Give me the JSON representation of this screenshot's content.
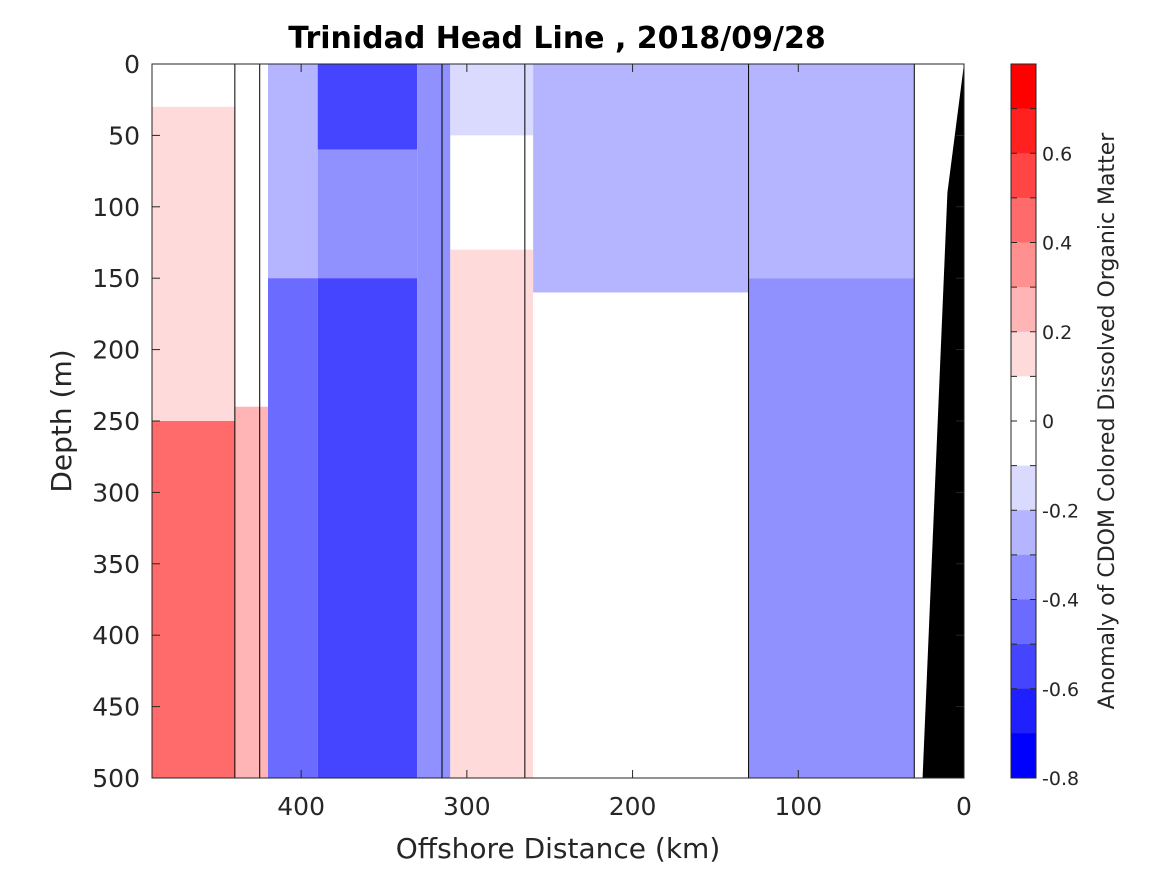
{
  "chart_data": {
    "type": "heatmap",
    "title": "Trinidad Head Line , 2018/09/28",
    "xlabel": "Offshore Distance (km)",
    "ylabel": "Depth (m)",
    "colorbar_label": "Anomaly of CDOM Colored Dissolved Organic Matter",
    "xlim": [
      490,
      0
    ],
    "ylim": [
      0,
      500
    ],
    "x_reversed": true,
    "y_reversed": true,
    "x_ticks": [
      400,
      300,
      200,
      100,
      0
    ],
    "x_tick_labels": [
      "400",
      "300",
      "200",
      "100",
      "0"
    ],
    "y_ticks": [
      0,
      50,
      100,
      150,
      200,
      250,
      300,
      350,
      400,
      450,
      500
    ],
    "y_tick_labels": [
      "0",
      "50",
      "100",
      "150",
      "200",
      "250",
      "300",
      "350",
      "400",
      "450",
      "500"
    ],
    "colorbar": {
      "min": -0.8,
      "max": 0.8,
      "ticks": [
        0.6,
        0.4,
        0.2,
        0,
        -0.2,
        -0.4,
        -0.6,
        -0.8
      ],
      "tick_labels": [
        "0.6",
        "0.4",
        "0.2",
        "0",
        "-0.2",
        "-0.4",
        "-0.6",
        "-0.8"
      ],
      "colors_top_to_bottom": [
        "#ff0000",
        "#ff2020",
        "#ff4545",
        "#ff6b6b",
        "#ff9090",
        "#ffb5b5",
        "#ffdada",
        "#ffffff",
        "#ffffff",
        "#dadaff",
        "#b5b5ff",
        "#9090ff",
        "#6b6bff",
        "#4545ff",
        "#2020ff",
        "#0000ff"
      ]
    },
    "bands": [
      {
        "x_from": 490,
        "x_to": 440,
        "segments": [
          {
            "y_from": 0,
            "y_to": 30,
            "value": 0.0
          },
          {
            "y_from": 30,
            "y_to": 250,
            "value": 0.2
          },
          {
            "y_from": 250,
            "y_to": 500,
            "value": 0.5
          }
        ]
      },
      {
        "x_from": 440,
        "x_to": 420,
        "segments": [
          {
            "y_from": 0,
            "y_to": 240,
            "value": 0.1
          },
          {
            "y_from": 240,
            "y_to": 500,
            "value": 0.3
          }
        ]
      },
      {
        "x_from": 420,
        "x_to": 390,
        "segments": [
          {
            "y_from": 0,
            "y_to": 150,
            "value": -0.2
          },
          {
            "y_from": 150,
            "y_to": 500,
            "value": -0.4
          }
        ]
      },
      {
        "x_from": 390,
        "x_to": 330,
        "segments": [
          {
            "y_from": 0,
            "y_to": 60,
            "value": -0.5
          },
          {
            "y_from": 60,
            "y_to": 150,
            "value": -0.3
          },
          {
            "y_from": 150,
            "y_to": 500,
            "value": -0.5
          }
        ]
      },
      {
        "x_from": 330,
        "x_to": 310,
        "segments": [
          {
            "y_from": 0,
            "y_to": 500,
            "value": -0.3
          }
        ]
      },
      {
        "x_from": 310,
        "x_to": 260,
        "segments": [
          {
            "y_from": 0,
            "y_to": 50,
            "value": -0.1
          },
          {
            "y_from": 50,
            "y_to": 130,
            "value": 0.1
          },
          {
            "y_from": 130,
            "y_to": 500,
            "value": 0.2
          }
        ]
      },
      {
        "x_from": 260,
        "x_to": 130,
        "segments": [
          {
            "y_from": 0,
            "y_to": 160,
            "value": -0.2
          },
          {
            "y_from": 160,
            "y_to": 240,
            "value": 0.1
          },
          {
            "y_from": 240,
            "y_to": 500,
            "value": 0.1
          }
        ]
      },
      {
        "x_from": 130,
        "x_to": 30,
        "segments": [
          {
            "y_from": 0,
            "y_to": 150,
            "value": -0.2
          },
          {
            "y_from": 150,
            "y_to": 500,
            "value": -0.3
          }
        ]
      },
      {
        "x_from": 30,
        "x_to": 0,
        "segments": [
          {
            "y_from": 0,
            "y_to": 500,
            "value": 0.0
          }
        ]
      }
    ],
    "zero_contour_x": [
      440,
      425,
      315,
      265,
      130,
      30
    ],
    "seafloor": [
      [
        0,
        0
      ],
      [
        10,
        90
      ],
      [
        25,
        500
      ]
    ],
    "seafloor_color": "#000000"
  }
}
